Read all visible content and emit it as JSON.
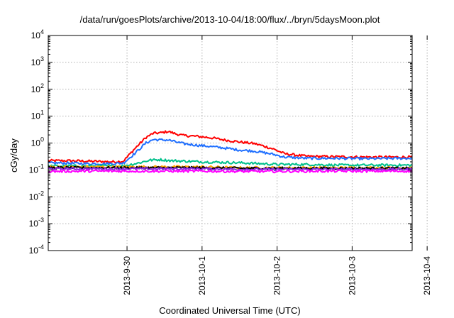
{
  "chart_data": {
    "type": "line",
    "title": "/data/run/goesPlots/archive/2013-10-04/18:00/flux/../bryn/5daysMoon.plot",
    "xlabel": "Coordinated Universal Time (UTC)",
    "ylabel": "cGy/day",
    "y_scale": "log",
    "ylim": [
      0.0001,
      10000
    ],
    "xlim": [
      -1.05,
      3.8
    ],
    "x_origin_label": "2013-9-30",
    "x_ticks": [
      {
        "x": 0,
        "label": "2013-9-30"
      },
      {
        "x": 1,
        "label": "2013-10-1"
      },
      {
        "x": 2,
        "label": "2013-10-2"
      },
      {
        "x": 3,
        "label": "2013-10-3"
      },
      {
        "x": 4,
        "label": "2013-10-4"
      }
    ],
    "y_ticks": [
      {
        "value": 0.0001,
        "base": "10",
        "exp": "-4"
      },
      {
        "value": 0.001,
        "base": "10",
        "exp": "-3"
      },
      {
        "value": 0.01,
        "base": "10",
        "exp": "-2"
      },
      {
        "value": 0.1,
        "base": "10",
        "exp": "-1"
      },
      {
        "value": 1,
        "base": "10",
        "exp": "0"
      },
      {
        "value": 10,
        "base": "10",
        "exp": "1"
      },
      {
        "value": 100,
        "base": "10",
        "exp": "2"
      },
      {
        "value": 1000,
        "base": "10",
        "exp": "3"
      },
      {
        "value": 10000,
        "base": "10",
        "exp": "4"
      }
    ],
    "grid": true,
    "legend": "none",
    "series": [
      {
        "color": "#ff0000",
        "x": [
          -1.05,
          -0.8,
          -0.5,
          -0.2,
          -0.05,
          0.1,
          0.25,
          0.35,
          0.45,
          0.55,
          0.65,
          0.75,
          0.9,
          1.1,
          1.3,
          1.5,
          1.7,
          1.8,
          1.95,
          2.1,
          2.4,
          2.8,
          3.2,
          3.6,
          3.8
        ],
        "y": [
          0.22,
          0.22,
          0.21,
          0.2,
          0.21,
          0.6,
          1.6,
          2.3,
          2.4,
          2.7,
          2.2,
          1.9,
          1.8,
          1.6,
          1.3,
          1.1,
          0.95,
          0.8,
          0.6,
          0.4,
          0.32,
          0.31,
          0.3,
          0.3,
          0.3
        ]
      },
      {
        "color": "#1f6fff",
        "x": [
          -1.05,
          -0.8,
          -0.5,
          -0.2,
          -0.05,
          0.1,
          0.25,
          0.35,
          0.45,
          0.55,
          0.65,
          0.75,
          0.9,
          1.1,
          1.3,
          1.5,
          1.7,
          1.8,
          1.95,
          2.1,
          2.4,
          2.8,
          3.2,
          3.6,
          3.8
        ],
        "y": [
          0.18,
          0.18,
          0.17,
          0.17,
          0.18,
          0.4,
          1.0,
          1.35,
          1.3,
          1.3,
          1.1,
          0.95,
          0.85,
          0.75,
          0.65,
          0.55,
          0.5,
          0.45,
          0.38,
          0.3,
          0.27,
          0.27,
          0.26,
          0.27,
          0.27
        ]
      },
      {
        "color": "#00c08b",
        "x": [
          -1.05,
          -0.5,
          -0.05,
          0.15,
          0.3,
          0.45,
          0.6,
          0.8,
          1.0,
          1.3,
          1.6,
          1.8,
          2.0,
          2.4,
          2.8,
          3.2,
          3.6,
          3.8
        ],
        "y": [
          0.14,
          0.14,
          0.14,
          0.18,
          0.23,
          0.24,
          0.22,
          0.21,
          0.2,
          0.19,
          0.18,
          0.17,
          0.16,
          0.16,
          0.15,
          0.15,
          0.15,
          0.15
        ]
      },
      {
        "color": "#ffa500",
        "x": [
          -1.05,
          -0.5,
          0.0,
          0.5,
          1.0,
          1.5,
          2.0,
          2.5,
          3.0,
          3.5,
          3.8
        ],
        "y": [
          0.13,
          0.13,
          0.13,
          0.13,
          0.13,
          0.12,
          0.12,
          0.12,
          0.12,
          0.12,
          0.12
        ]
      },
      {
        "color": "#000000",
        "x": [
          -1.05,
          -0.5,
          0.0,
          0.5,
          1.0,
          1.5,
          2.0,
          2.5,
          3.0,
          3.5,
          3.8
        ],
        "y": [
          0.12,
          0.12,
          0.12,
          0.12,
          0.12,
          0.115,
          0.115,
          0.115,
          0.115,
          0.115,
          0.115
        ]
      },
      {
        "color": "#8a2be2",
        "x": [
          -1.05,
          -0.5,
          0.0,
          0.5,
          1.0,
          1.5,
          2.0,
          2.5,
          3.0,
          3.5,
          3.8
        ],
        "y": [
          0.11,
          0.11,
          0.11,
          0.11,
          0.11,
          0.105,
          0.105,
          0.105,
          0.105,
          0.105,
          0.105
        ]
      },
      {
        "color": "#ff00ff",
        "x": [
          -1.05,
          -0.5,
          0.0,
          0.5,
          1.0,
          1.5,
          2.0,
          2.5,
          3.0,
          3.5,
          3.8
        ],
        "y": [
          0.088,
          0.09,
          0.09,
          0.09,
          0.09,
          0.088,
          0.088,
          0.09,
          0.09,
          0.09,
          0.09
        ]
      }
    ]
  }
}
